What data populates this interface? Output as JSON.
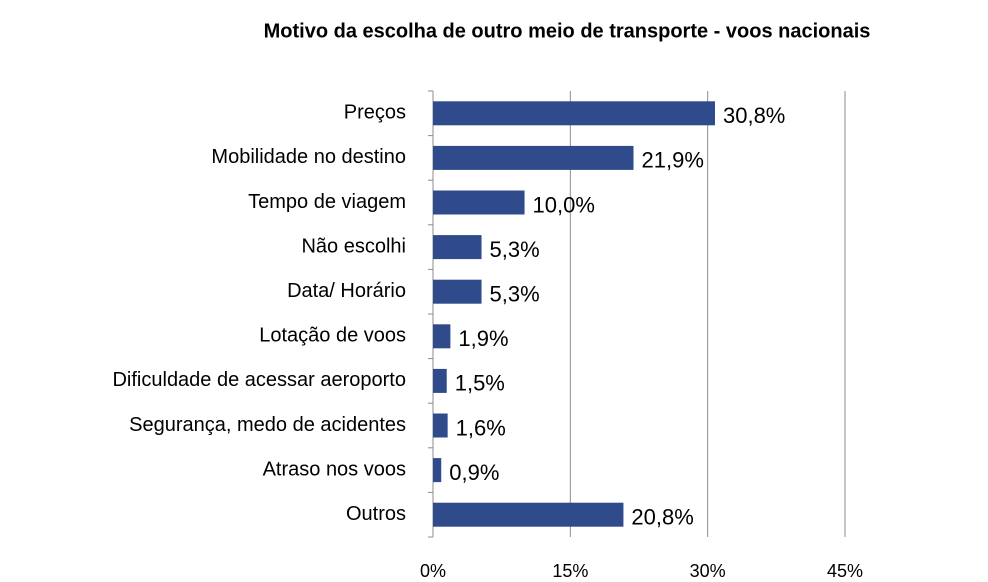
{
  "chart_data": {
    "type": "bar",
    "orientation": "horizontal",
    "title": "Motivo da escolha de outro meio de transporte - voos nacionais",
    "categories": [
      "Preços",
      "Mobilidade no destino",
      "Tempo de viagem",
      "Não escolhi",
      "Data/ Horário",
      "Lotação de voos",
      "Dificuldade de acessar aeroporto",
      "Segurança, medo de acidentes",
      "Atraso nos voos",
      "Outros"
    ],
    "values": [
      30.8,
      21.9,
      10.0,
      5.3,
      5.3,
      1.9,
      1.5,
      1.6,
      0.9,
      20.8
    ],
    "value_labels": [
      "30,8%",
      "21,9%",
      "10,0%",
      "5,3%",
      "5,3%",
      "1,9%",
      "1,5%",
      "1,6%",
      "0,9%",
      "20,8%"
    ],
    "color": "#2f4b8c",
    "xlim": [
      0,
      45
    ],
    "xticks": [
      {
        "value": 0,
        "label": "0%"
      },
      {
        "value": 15,
        "label": "15%"
      },
      {
        "value": 30,
        "label": "30%"
      },
      {
        "value": 45,
        "label": "45%"
      }
    ],
    "grid": true
  }
}
